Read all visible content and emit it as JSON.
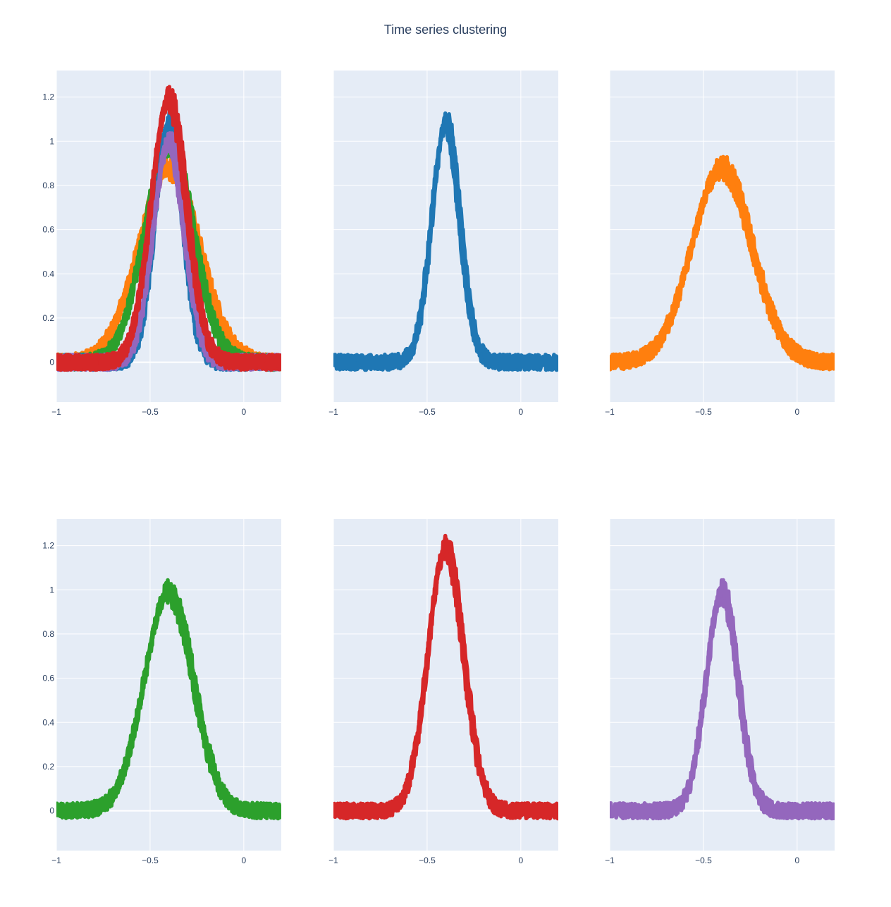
{
  "title": "Time series clustering",
  "chart_data": {
    "type": "line",
    "title": "Time series clustering",
    "layout": "2x3 grid of subplots",
    "shared_yaxis_per_row": true,
    "grid": true,
    "background": "#e5ecf6",
    "xlim": [
      -1,
      0.2
    ],
    "ylim": [
      -0.18,
      1.32
    ],
    "x_ticks": [
      -1,
      -0.5,
      0
    ],
    "x_tick_labels": [
      "−1",
      "−0.5",
      "0"
    ],
    "y_ticks": [
      0,
      0.2,
      0.4,
      0.6,
      0.8,
      1,
      1.2
    ],
    "y_tick_labels": [
      "0",
      "0.2",
      "0.4",
      "0.6",
      "0.8",
      "1",
      "1.2"
    ],
    "clusters": [
      {
        "color": "#1f77b4",
        "center": -0.4,
        "amplitude": 1.08,
        "width": 0.075,
        "noise_band": 0.035
      },
      {
        "color": "#ff7f0e",
        "center": -0.4,
        "amplitude": 0.88,
        "width": 0.16,
        "noise_band": 0.035
      },
      {
        "color": "#2ca02c",
        "center": -0.4,
        "amplitude": 0.99,
        "width": 0.13,
        "noise_band": 0.035
      },
      {
        "color": "#d62728",
        "center": -0.4,
        "amplitude": 1.19,
        "width": 0.095,
        "noise_band": 0.035
      },
      {
        "color": "#9467bd",
        "center": -0.4,
        "amplitude": 0.99,
        "width": 0.085,
        "noise_band": 0.035
      }
    ],
    "subplots": [
      {
        "row": 0,
        "col": 0,
        "clusters": [
          1,
          2,
          0,
          4,
          3
        ],
        "show_y_ticks": true
      },
      {
        "row": 0,
        "col": 1,
        "clusters": [
          0
        ],
        "show_y_ticks": false
      },
      {
        "row": 0,
        "col": 2,
        "clusters": [
          1
        ],
        "show_y_ticks": false
      },
      {
        "row": 1,
        "col": 0,
        "clusters": [
          2
        ],
        "show_y_ticks": true
      },
      {
        "row": 1,
        "col": 1,
        "clusters": [
          3
        ],
        "show_y_ticks": false
      },
      {
        "row": 1,
        "col": 2,
        "clusters": [
          4
        ],
        "show_y_ticks": false
      }
    ]
  }
}
